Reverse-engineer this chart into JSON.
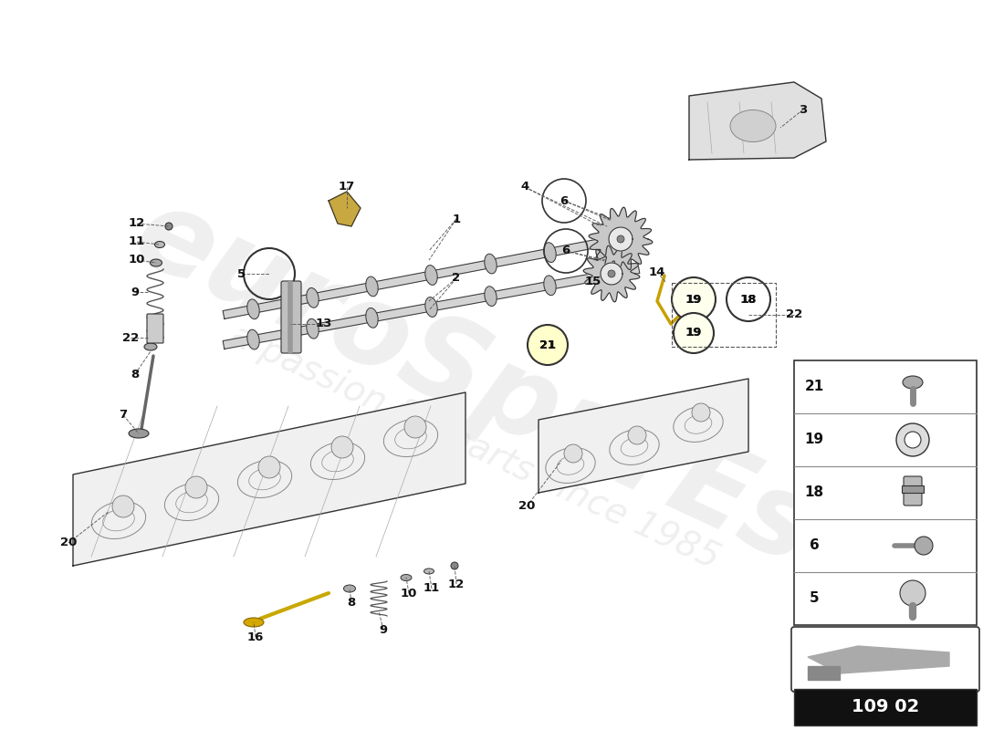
{
  "background_color": "#ffffff",
  "watermark_text": "euroSparEs",
  "watermark_subtext": "a passion for parts since 1985",
  "page_code": "109 02",
  "line_color": "#333333",
  "label_color": "#111111"
}
